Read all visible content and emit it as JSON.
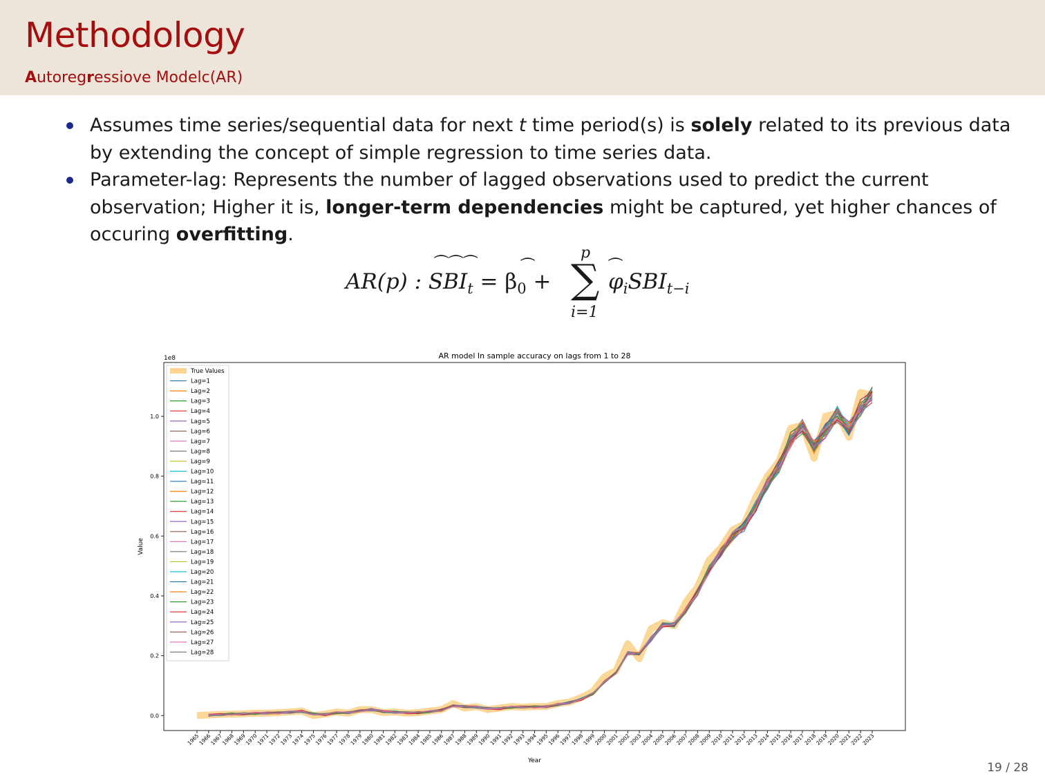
{
  "header": {
    "title": "Methodology",
    "subtitle_first": "A",
    "subtitle_mid1": "utoreg",
    "subtitle_r": "r",
    "subtitle_rest": "essiove Modelc(AR)"
  },
  "bullets": [
    {
      "p1": "Assumes time series/sequential data for next ",
      "var": "t",
      "p2": " time period(s) is ",
      "bold": "solely",
      "p3": " related to its previous data by extending the concept of simple regression to time series data."
    },
    {
      "p1": "Parameter-lag: Represents the number of lagged observations used to predict the current observation; Higher it is, ",
      "bold1": "longer-term dependencies",
      "p2": " might be captured, yet higher chances of occuring ",
      "bold2": "overfitting",
      "p3": "."
    }
  ],
  "formula": {
    "lhs": "AR(p) : SBI",
    "sub_t": "t",
    "eq": "= β",
    "sub0": "0",
    "plus": "+",
    "sum_upper": "p",
    "sum_lower": "i=1",
    "phi": "φ",
    "sub_i": "i",
    "sbi": "SBI",
    "sub_ti": "t−i"
  },
  "chart_data": {
    "type": "line",
    "title": "AR model In sample accuracy on lags from 1 to 28",
    "xlabel": "Year",
    "ylabel": "Value",
    "scale_label": "1e8",
    "ylim": [
      -0.05,
      1.18
    ],
    "yticks": [
      0.0,
      0.2,
      0.4,
      0.6,
      0.8,
      1.0
    ],
    "ytick_labels": [
      "0.0",
      "0.2",
      "0.4",
      "0.6",
      "0.8",
      "1.0"
    ],
    "x": [
      "1965",
      "1966",
      "1967",
      "1968",
      "1969",
      "1970",
      "1971",
      "1972",
      "1973",
      "1974",
      "1975",
      "1976",
      "1977",
      "1978",
      "1979",
      "1980",
      "1981",
      "1982",
      "1983",
      "1984",
      "1985",
      "1986",
      "1987",
      "1988",
      "1989",
      "1990",
      "1991",
      "1992",
      "1993",
      "1994",
      "1995",
      "1996",
      "1997",
      "1998",
      "1999",
      "2000",
      "2001",
      "2002",
      "2003",
      "2004",
      "2005",
      "2006",
      "2007",
      "2008",
      "2009",
      "2010",
      "2011",
      "2012",
      "2013",
      "2014",
      "2015",
      "2016",
      "2017",
      "2018",
      "2019",
      "2020",
      "2021",
      "2022",
      "2023"
    ],
    "true_values": [
      0.0,
      0.002,
      0.004,
      0.005,
      0.006,
      0.008,
      0.008,
      0.01,
      0.012,
      0.015,
      0.0,
      0.005,
      0.012,
      0.008,
      0.02,
      0.02,
      0.01,
      0.012,
      0.008,
      0.01,
      0.015,
      0.02,
      0.04,
      0.025,
      0.03,
      0.02,
      0.025,
      0.03,
      0.028,
      0.03,
      0.03,
      0.04,
      0.045,
      0.06,
      0.08,
      0.13,
      0.15,
      0.24,
      0.19,
      0.29,
      0.31,
      0.3,
      0.38,
      0.43,
      0.52,
      0.56,
      0.62,
      0.64,
      0.73,
      0.8,
      0.85,
      0.96,
      0.97,
      0.86,
      1.0,
      1.01,
      0.93,
      1.08,
      1.07
    ],
    "legend": [
      "True Values",
      "Lag=1",
      "Lag=2",
      "Lag=3",
      "Lag=4",
      "Lag=5",
      "Lag=6",
      "Lag=7",
      "Lag=8",
      "Lag=9",
      "Lag=10",
      "Lag=11",
      "Lag=12",
      "Lag=13",
      "Lag=14",
      "Lag=15",
      "Lag=16",
      "Lag=17",
      "Lag=18",
      "Lag=19",
      "Lag=20",
      "Lag=21",
      "Lag=22",
      "Lag=23",
      "Lag=24",
      "Lag=25",
      "Lag=26",
      "Lag=27",
      "Lag=28"
    ],
    "legend_position": "upper-left",
    "colors": [
      "#fbd592",
      "#1f77b4",
      "#ff7f0e",
      "#2ca02c",
      "#d62728",
      "#9467bd",
      "#8c564b",
      "#e377c2",
      "#7f7f7f",
      "#bcbd22",
      "#17becf",
      "#1f77b4",
      "#ff7f0e",
      "#2ca02c",
      "#d62728",
      "#9467bd",
      "#8c564b",
      "#e377c2",
      "#7f7f7f",
      "#bcbd22",
      "#17becf",
      "#1f77b4",
      "#ff7f0e",
      "#2ca02c",
      "#d62728",
      "#9467bd",
      "#8c564b",
      "#e377c2",
      "#7f7f7f"
    ],
    "grid": false
  },
  "page_number": "19 / 28"
}
